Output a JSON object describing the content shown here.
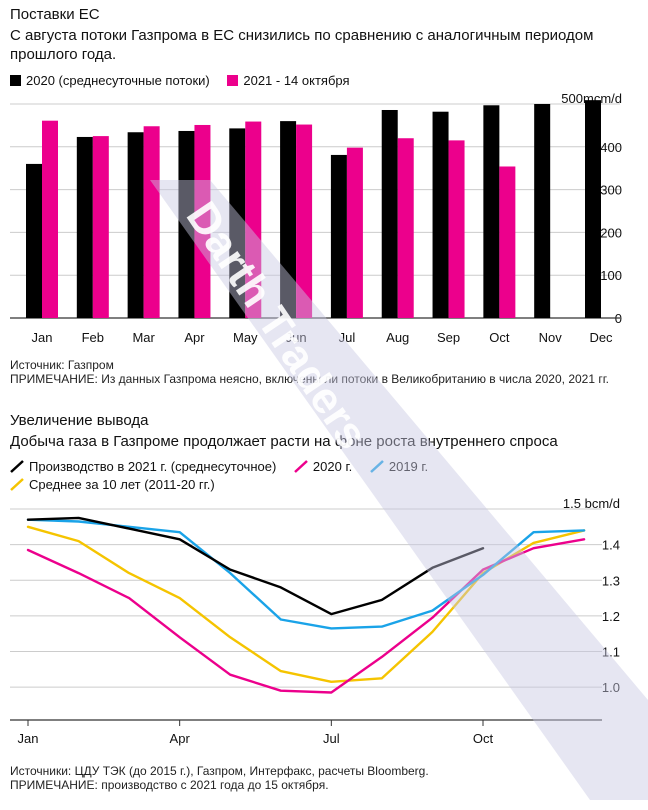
{
  "chart1": {
    "title": "Поставки ЕС",
    "subtitle": "С августа потоки Газпрома в ЕС снизились по сравнению с аналогичным периодом прошлого года.",
    "legend": [
      {
        "name": "2020 (среднесуточные потоки)",
        "color": "#000000"
      },
      {
        "name": "2021 - 14 октября",
        "color": "#ec008c"
      }
    ],
    "source": "Источник: Газпром",
    "note": "ПРИМЕЧАНИЕ: Из данных Газпрома неясно, включены ли потоки в Великобританию в числа 2020, 2021 гг."
  },
  "chart2": {
    "title": "Увеличение вывода",
    "subtitle": "Добыча газа в Газпроме продолжает расти на фоне роста внутреннего спроса",
    "legend": [
      {
        "name": "Производство в 2021 г. (среднесуточное)",
        "color": "#000000"
      },
      {
        "name": "2020 г.",
        "color": "#ec008c"
      },
      {
        "name": "2019 г.",
        "color": "#1aa3e8"
      },
      {
        "name": "Среднее за 10 лет (2011-20 гг.)",
        "color": "#f5c400"
      }
    ],
    "sources": "Источники: ЦДУ ТЭК (до 2015 г.), Газпром, Интерфакс, расчеты Bloomberg.",
    "note": "ПРИМЕЧАНИЕ: производство с 2021 года до 15 октября."
  },
  "watermark": "Darth Traders",
  "chart_data": [
    {
      "type": "bar",
      "title": "Поставки ЕС",
      "unit_label": "mcm/d",
      "categories": [
        "Jan",
        "Feb",
        "Mar",
        "Apr",
        "May",
        "Jun",
        "Jul",
        "Aug",
        "Sep",
        "Oct",
        "Nov",
        "Dec"
      ],
      "series": [
        {
          "name": "2020 (среднесуточные потоки)",
          "color": "#000000",
          "values": [
            360,
            423,
            434,
            437,
            443,
            460,
            381,
            486,
            482,
            497,
            500,
            509
          ]
        },
        {
          "name": "2021 - 14 октября",
          "color": "#ec008c",
          "values": [
            461,
            425,
            448,
            451,
            459,
            452,
            398,
            420,
            415,
            354,
            null,
            null
          ]
        }
      ],
      "ylim": [
        0,
        500
      ],
      "yticks": [
        0,
        100,
        200,
        300,
        400,
        500
      ],
      "ytick_labels": [
        "0",
        "100",
        "200",
        "300",
        "400",
        "500mcm/d"
      ],
      "baseline": 0,
      "grid": true
    },
    {
      "type": "line",
      "title": "Увеличение вывода",
      "unit_label": "bcm/d",
      "x_labels": [
        "Jan",
        "Apr",
        "Jul",
        "Oct"
      ],
      "x_label_months": [
        1,
        4,
        7,
        10
      ],
      "ylim": [
        0.95,
        1.5
      ],
      "yticks": [
        1.0,
        1.1,
        1.2,
        1.3,
        1.4,
        1.5
      ],
      "ytick_labels": [
        "1.0",
        "1.1",
        "1.2",
        "1.3",
        "1.4",
        "1.5 bcm/d"
      ],
      "grid": true,
      "series": [
        {
          "name": "Производство в 2021 г. (среднесуточное)",
          "color": "#000000",
          "x": [
            1,
            2,
            3,
            4,
            5,
            6,
            7,
            8,
            9,
            10
          ],
          "y": [
            1.47,
            1.475,
            1.445,
            1.415,
            1.33,
            1.28,
            1.205,
            1.245,
            1.335,
            1.39
          ]
        },
        {
          "name": "2020 г.",
          "color": "#ec008c",
          "x": [
            1,
            2,
            3,
            4,
            5,
            6,
            7,
            8,
            9,
            10,
            11,
            12
          ],
          "y": [
            1.385,
            1.32,
            1.25,
            1.14,
            1.035,
            0.99,
            0.985,
            1.085,
            1.195,
            1.33,
            1.39,
            1.415
          ]
        },
        {
          "name": "2019 г.",
          "color": "#1aa3e8",
          "x": [
            1,
            2,
            3,
            4,
            5,
            6,
            7,
            8,
            9,
            10,
            11,
            12
          ],
          "y": [
            1.47,
            1.465,
            1.45,
            1.435,
            1.32,
            1.19,
            1.165,
            1.17,
            1.215,
            1.315,
            1.435,
            1.44
          ]
        },
        {
          "name": "Среднее за 10 лет (2011-20 гг.)",
          "color": "#f5c400",
          "x": [
            1,
            2,
            3,
            4,
            5,
            6,
            7,
            8,
            9,
            10,
            11,
            12
          ],
          "y": [
            1.45,
            1.41,
            1.32,
            1.25,
            1.14,
            1.045,
            1.015,
            1.025,
            1.155,
            1.32,
            1.405,
            1.44
          ]
        }
      ]
    }
  ]
}
